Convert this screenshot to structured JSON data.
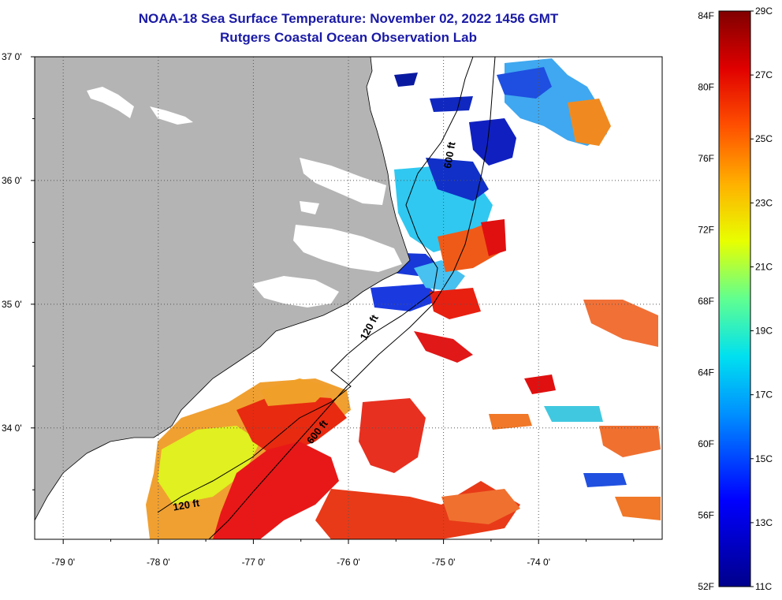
{
  "header": {
    "title": "NOAA-18 Sea Surface Temperature:  November 02, 2022 1456 GMT",
    "subtitle": "Rutgers Coastal Ocean Observation Lab"
  },
  "map": {
    "lon_range": [
      -79.3,
      -72.7
    ],
    "lat_range": [
      33.1,
      37.0
    ],
    "lat_ticks": [
      {
        "value": 37.0,
        "label": "37 0'"
      },
      {
        "value": 36.0,
        "label": "36 0'"
      },
      {
        "value": 35.0,
        "label": "35 0'"
      },
      {
        "value": 34.0,
        "label": "34 0'"
      }
    ],
    "lon_ticks": [
      {
        "value": -79.0,
        "label": "-79 0'"
      },
      {
        "value": -78.0,
        "label": "-78 0'"
      },
      {
        "value": -77.0,
        "label": "-77 0'"
      },
      {
        "value": -76.0,
        "label": "-76 0'"
      },
      {
        "value": -75.0,
        "label": "-75 0'"
      },
      {
        "value": -74.0,
        "label": "-74 0'"
      }
    ],
    "contour_labels": [
      {
        "text": "600 ft",
        "lon": -74.9,
        "lat": 36.2,
        "rotate": -80
      },
      {
        "text": "120 ft",
        "lon": -75.75,
        "lat": 34.8,
        "rotate": -62
      },
      {
        "text": "600 ft",
        "lon": -76.3,
        "lat": 33.95,
        "rotate": -52
      },
      {
        "text": "120 ft",
        "lon": -77.7,
        "lat": 33.35,
        "rotate": -10
      }
    ],
    "colors": {
      "land": "#b4b4b4",
      "water_nodata": "#ffffff",
      "grid": "#555555",
      "contour": "#000000"
    }
  },
  "colorbar": {
    "min_c": 11,
    "max_c": 29,
    "f_labels": [
      "84F",
      "80F",
      "76F",
      "72F",
      "68F",
      "64F",
      "60F",
      "56F",
      "52F"
    ],
    "c_labels": [
      "29C",
      "27C",
      "25C",
      "23C",
      "21C",
      "19C",
      "17C",
      "15C",
      "13C",
      "11C"
    ]
  }
}
